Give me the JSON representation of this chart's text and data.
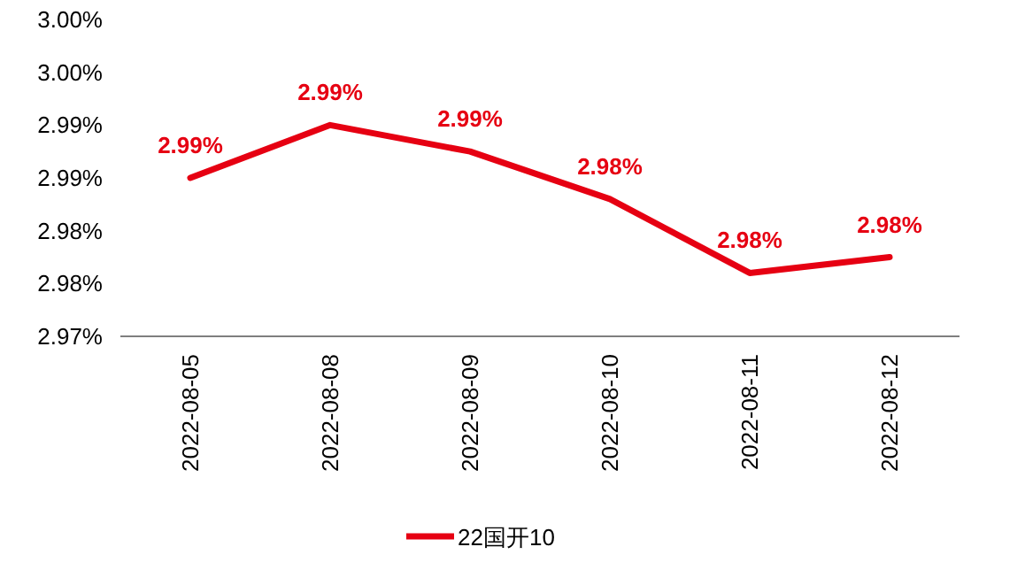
{
  "chart_data": {
    "type": "line",
    "categories": [
      "2022-08-05",
      "2022-08-08",
      "2022-08-09",
      "2022-08-10",
      "2022-08-11",
      "2022-08-12"
    ],
    "series": [
      {
        "name": "22国开10",
        "color": "#e60012",
        "values": [
          2.985,
          2.99,
          2.9875,
          2.983,
          2.976,
          2.9775
        ],
        "value_labels": [
          "2.99%",
          "2.99%",
          "2.99%",
          "2.98%",
          "2.98%",
          "2.98%"
        ]
      }
    ],
    "ylim": [
      2.97,
      3.0
    ],
    "yticks": [
      {
        "value": 2.97,
        "label": "2.97%"
      },
      {
        "value": 2.975,
        "label": "2.98%"
      },
      {
        "value": 2.98,
        "label": "2.98%"
      },
      {
        "value": 2.985,
        "label": "2.99%"
      },
      {
        "value": 2.99,
        "label": "2.99%"
      },
      {
        "value": 2.995,
        "label": "3.00%"
      },
      {
        "value": 3.0,
        "label": "3.00%"
      }
    ],
    "grid": false,
    "legend": "bottom",
    "marker": "none",
    "line_style": "solid"
  }
}
